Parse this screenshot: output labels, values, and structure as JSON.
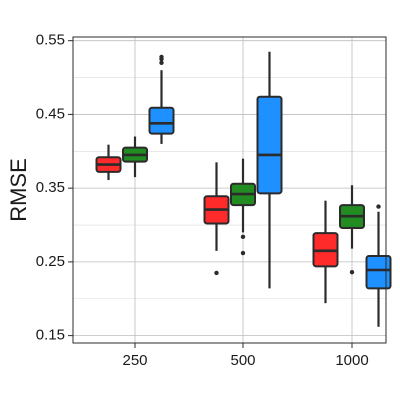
{
  "chart_data": {
    "type": "boxplot",
    "title": "",
    "xlabel": "",
    "ylabel": "RMSE",
    "ylim": [
      0.14,
      0.555
    ],
    "y_ticks": [
      0.15,
      0.25,
      0.35,
      0.45,
      0.55
    ],
    "y_tick_labels": [
      "0.15",
      "0.25",
      "0.35",
      "0.45",
      "0.55"
    ],
    "grid": true,
    "categories": [
      "250",
      "500",
      "1000"
    ],
    "series": [
      {
        "color": "#ff2a2a",
        "boxes": [
          {
            "category": "250",
            "whisker_low": 0.361,
            "q1": 0.372,
            "median": 0.382,
            "q3": 0.392,
            "whisker_high": 0.409,
            "outliers": []
          },
          {
            "category": "500",
            "whisker_low": 0.265,
            "q1": 0.302,
            "median": 0.321,
            "q3": 0.339,
            "whisker_high": 0.385,
            "outliers": [
              0.235
            ]
          },
          {
            "category": "1000",
            "whisker_low": 0.194,
            "q1": 0.244,
            "median": 0.265,
            "q3": 0.289,
            "whisker_high": 0.333,
            "outliers": []
          }
        ]
      },
      {
        "color": "#228b22",
        "boxes": [
          {
            "category": "250",
            "whisker_low": 0.365,
            "q1": 0.386,
            "median": 0.395,
            "q3": 0.405,
            "whisker_high": 0.42,
            "outliers": []
          },
          {
            "category": "500",
            "whisker_low": 0.29,
            "q1": 0.327,
            "median": 0.342,
            "q3": 0.356,
            "whisker_high": 0.39,
            "outliers": [
              0.284,
              0.262
            ]
          },
          {
            "category": "1000",
            "whisker_low": 0.268,
            "q1": 0.296,
            "median": 0.312,
            "q3": 0.327,
            "whisker_high": 0.354,
            "outliers": [
              0.236
            ]
          }
        ]
      },
      {
        "color": "#1e90ff",
        "boxes": [
          {
            "category": "250",
            "whisker_low": 0.41,
            "q1": 0.424,
            "median": 0.438,
            "q3": 0.459,
            "whisker_high": 0.51,
            "outliers": [
              0.52,
              0.525,
              0.528
            ]
          },
          {
            "category": "500",
            "whisker_low": 0.214,
            "q1": 0.343,
            "median": 0.395,
            "q3": 0.474,
            "whisker_high": 0.535,
            "outliers": []
          },
          {
            "category": "1000",
            "whisker_low": 0.162,
            "q1": 0.214,
            "median": 0.239,
            "q3": 0.258,
            "whisker_high": 0.318,
            "outliers": [
              0.325
            ]
          }
        ]
      }
    ]
  }
}
